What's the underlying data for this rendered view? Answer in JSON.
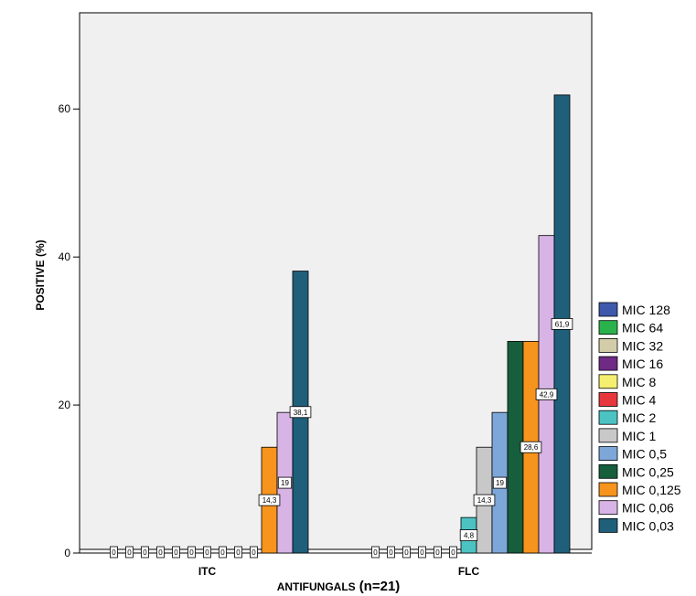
{
  "chart_data": {
    "type": "bar",
    "title": "",
    "xlabel": "ANTIFUNGALS",
    "xlabel_suffix": "(n=21)",
    "ylabel": "POSITIVE (%)",
    "ylim": [
      0,
      73
    ],
    "yticks": [
      0,
      20,
      40,
      60
    ],
    "grid": false,
    "legend_position": "right",
    "categories": [
      "ITC",
      "FLC"
    ],
    "series": [
      {
        "name": "MIC 128",
        "color": "#3e58ac",
        "values": [
          0,
          0
        ],
        "labels": [
          "0",
          "0"
        ]
      },
      {
        "name": "MIC 64",
        "color": "#2ab34c",
        "values": [
          0,
          0
        ],
        "labels": [
          "0",
          "0"
        ]
      },
      {
        "name": "MIC 32",
        "color": "#d2cda8",
        "values": [
          0,
          0
        ],
        "labels": [
          "0",
          "0"
        ]
      },
      {
        "name": "MIC 16",
        "color": "#6e2a84",
        "values": [
          0,
          0
        ],
        "labels": [
          "0",
          "0"
        ]
      },
      {
        "name": "MIC 8",
        "color": "#f4ef6e",
        "values": [
          0,
          0
        ],
        "labels": [
          "0",
          "0"
        ]
      },
      {
        "name": "MIC 4",
        "color": "#e8373c",
        "values": [
          0,
          0
        ],
        "labels": [
          "0",
          "0"
        ]
      },
      {
        "name": "MIC 2",
        "color": "#4cc2c3",
        "values": [
          0,
          4.8
        ],
        "labels": [
          "0",
          "4,8"
        ]
      },
      {
        "name": "MIC 1",
        "color": "#c8c8c8",
        "values": [
          0,
          14.3
        ],
        "labels": [
          "0",
          "14,3"
        ]
      },
      {
        "name": "MIC 0,5",
        "color": "#7da7d9",
        "values": [
          0,
          19
        ],
        "labels": [
          "0",
          "19"
        ]
      },
      {
        "name": "MIC 0,25",
        "color": "#175e3c",
        "values": [
          0,
          28.6
        ],
        "labels": [
          "0",
          ""
        ]
      },
      {
        "name": "MIC 0,125",
        "color": "#f7941d",
        "values": [
          14.3,
          28.6
        ],
        "labels": [
          "14,3",
          "28,6"
        ]
      },
      {
        "name": "MIC 0,06",
        "color": "#d8b4e6",
        "values": [
          19,
          42.9
        ],
        "labels": [
          "19",
          "42,9"
        ]
      },
      {
        "name": "MIC 0,03",
        "color": "#1f5f7a",
        "values": [
          38.1,
          61.9
        ],
        "labels": [
          "38,1",
          "61,9"
        ]
      }
    ]
  }
}
